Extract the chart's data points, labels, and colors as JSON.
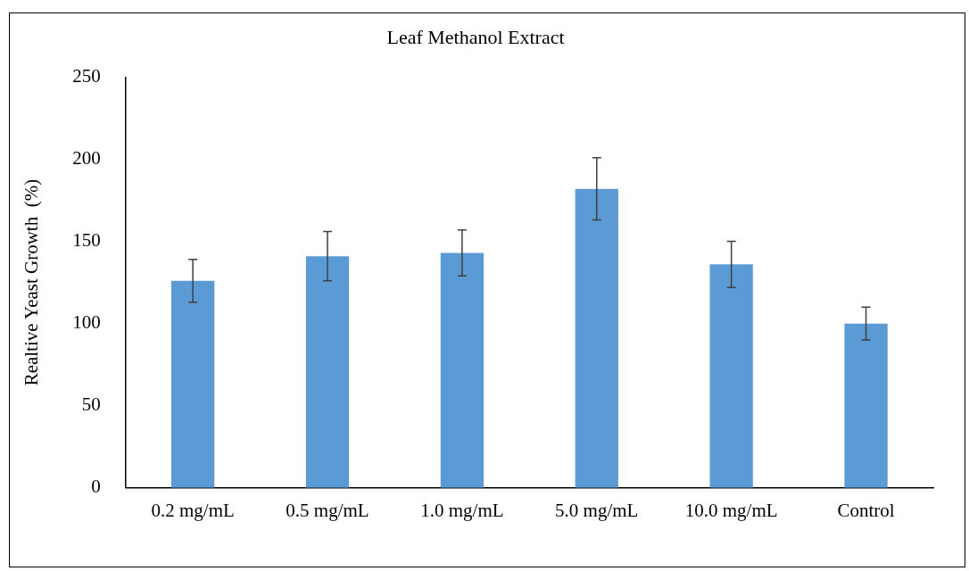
{
  "chart_data": {
    "type": "bar",
    "title": "Leaf Methanol Extract",
    "ylabel": "Realtive Yeast Growth  (%)",
    "categories": [
      "0.2 mg/mL",
      "0.5 mg/mL",
      "1.0 mg/mL",
      "5.0 mg/mL",
      "10.0 mg/mL",
      "Control"
    ],
    "values": [
      126,
      141,
      143,
      182,
      136,
      100
    ],
    "errors": [
      13,
      15,
      14,
      19,
      14,
      10
    ],
    "color": "#5b9bd5",
    "ylim": [
      0,
      250
    ],
    "yticks": [
      0,
      50,
      100,
      150,
      200,
      250
    ],
    "grid": false,
    "legend": false
  }
}
